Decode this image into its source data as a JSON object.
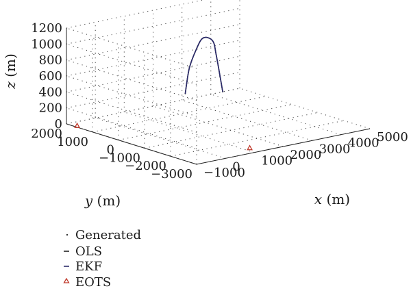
{
  "chart_data": {
    "type": "line",
    "projection": "3d",
    "grid": true,
    "legend_placement": "bottom-left",
    "xlabel": {
      "var": "x",
      "unit": "(m)"
    },
    "ylabel": {
      "var": "y",
      "unit": "(m)"
    },
    "zlabel": {
      "var": "z",
      "unit": "(m)"
    },
    "xlim": [
      -1000,
      5000
    ],
    "ylim": [
      -3000,
      2000
    ],
    "zlim": [
      0,
      1200
    ],
    "xticks": [
      "−1000",
      "0",
      "1000",
      "2000",
      "3000",
      "4000",
      "5000"
    ],
    "yticks": [
      "−3000",
      "−2000",
      "−1000",
      "0",
      "1000",
      "2000"
    ],
    "zticks": [
      "0",
      "200",
      "400",
      "600",
      "800",
      "1000",
      "1200"
    ],
    "xtick_values": [
      -1000,
      0,
      1000,
      2000,
      3000,
      4000,
      5000
    ],
    "ytick_values": [
      -3000,
      -2000,
      -1000,
      0,
      1000,
      2000
    ],
    "ztick_values": [
      0,
      200,
      400,
      600,
      800,
      1000,
      1200
    ],
    "series": [
      {
        "name": "Generated",
        "style": "dots",
        "color": "#333333",
        "x": [
          500,
          1000,
          1600,
          2200,
          2800,
          3200,
          3600
        ],
        "y": [
          -900,
          -500,
          -100,
          300,
          600,
          900,
          1100
        ],
        "z": [
          560,
          800,
          950,
          1010,
          900,
          650,
          150
        ]
      },
      {
        "name": "OLS",
        "style": "line",
        "color": "#222222",
        "x": [
          500,
          1000,
          1600,
          2200,
          2800,
          3200,
          3600
        ],
        "y": [
          -900,
          -500,
          -100,
          300,
          600,
          900,
          1100
        ],
        "z": [
          560,
          800,
          950,
          1010,
          900,
          650,
          150
        ]
      },
      {
        "name": "EKF",
        "style": "line",
        "color": "#2b2b6b",
        "x": [
          500,
          1000,
          1600,
          2200,
          2800,
          3200,
          3600
        ],
        "y": [
          -900,
          -500,
          -100,
          300,
          600,
          900,
          1100
        ],
        "z": [
          560,
          800,
          950,
          1010,
          900,
          650,
          150
        ]
      },
      {
        "name": "EOTS",
        "style": "triangle",
        "color": "#c0392b",
        "x": [
          -900,
          1200
        ],
        "y": [
          1700,
          -2600
        ],
        "z": [
          0,
          0
        ]
      }
    ]
  }
}
